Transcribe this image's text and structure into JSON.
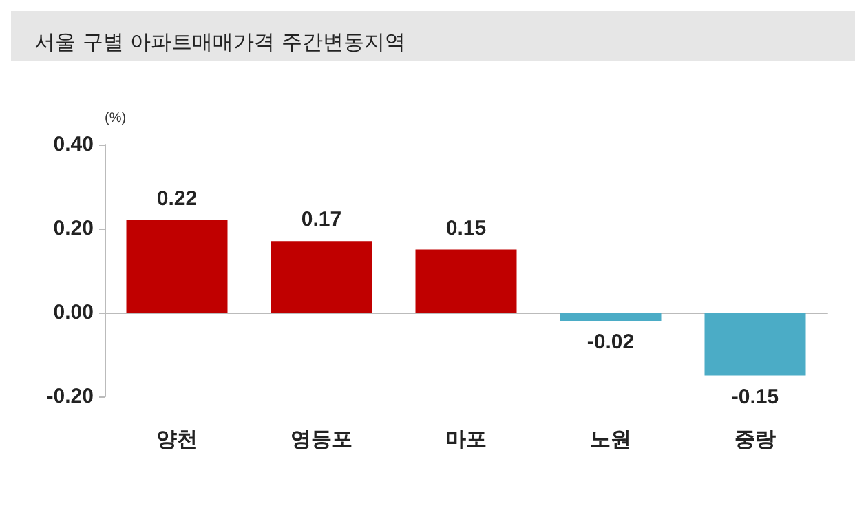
{
  "chart_data": {
    "type": "bar",
    "title": "서울 구별 아파트매매가격 주간변동지역",
    "ylabel": "(%)",
    "categories": [
      "양천",
      "영등포",
      "마포",
      "노원",
      "중랑"
    ],
    "values": [
      0.22,
      0.17,
      0.15,
      -0.02,
      -0.15
    ],
    "colors": [
      "#c00000",
      "#c00000",
      "#c00000",
      "#4bacc6",
      "#4bacc6"
    ],
    "ylim": [
      -0.2,
      0.4
    ],
    "yticks": [
      {
        "value": -0.2,
        "label": "-0.20"
      },
      {
        "value": 0,
        "label": "0.00"
      },
      {
        "value": 0.2,
        "label": "0.20"
      },
      {
        "value": 0.4,
        "label": "0.40"
      }
    ],
    "data_labels": true
  }
}
